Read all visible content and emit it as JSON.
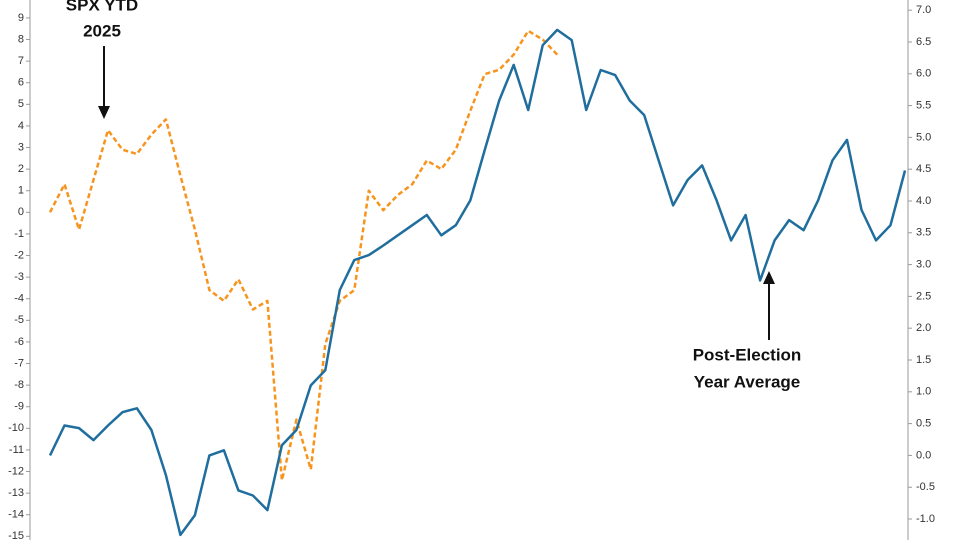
{
  "chart_data": {
    "type": "line",
    "annotations": [
      "SPX YTD",
      "2025",
      "Post-Election",
      "Year Average"
    ],
    "series": [
      {
        "name": "SPX YTD 2025",
        "color": "#f7941d",
        "dashed": true,
        "values": [
          0,
          1.3,
          -0.8,
          1.5,
          3.8,
          2.9,
          2.7,
          3.6,
          4.3,
          1.7,
          -0.8,
          -3.6,
          -4.1,
          -3.1,
          -4.5,
          -4.1,
          -12.4,
          -9.6,
          -11.9,
          -6.1,
          -4.1,
          -3.6,
          1.0,
          0.1,
          0.8,
          1.3,
          2.4,
          2.0,
          2.9,
          4.7,
          6.4,
          6.6,
          7.3,
          8.4,
          8.0,
          7.3,
          null,
          null,
          null,
          null,
          null,
          null,
          null,
          null,
          null,
          null,
          null,
          null,
          null,
          null,
          null,
          null,
          null,
          null,
          null,
          null,
          null,
          null,
          null,
          null
        ]
      },
      {
        "name": "Post-Election Year Average",
        "color": "#1f6e9e",
        "axis": "y2",
        "values": [
          0.0,
          0.47,
          0.43,
          0.24,
          0.47,
          0.68,
          0.74,
          0.4,
          -0.31,
          -1.25,
          -0.94,
          0.0,
          0.08,
          -0.55,
          -0.63,
          -0.86,
          0.16,
          0.4,
          1.1,
          1.34,
          2.6,
          3.07,
          3.15,
          3.3,
          3.46,
          3.62,
          3.78,
          3.46,
          3.62,
          4.01,
          4.8,
          5.58,
          6.14,
          5.43,
          6.45,
          6.69,
          6.53,
          5.43,
          6.06,
          5.98,
          5.58,
          5.35,
          4.64,
          3.93,
          4.33,
          4.56,
          4.01,
          3.38,
          3.78,
          2.75,
          3.38,
          3.7,
          3.54,
          4.01,
          4.64,
          4.96,
          3.86,
          3.38,
          3.62,
          4.48
        ]
      }
    ],
    "ylim": [
      -15.17,
      9.83
    ],
    "yticks": [
      -15,
      -14,
      -13,
      -12,
      -11,
      -10,
      -9,
      -8,
      -7,
      -6,
      -5,
      -4,
      -3,
      -2,
      -1,
      0,
      1,
      2,
      3,
      4,
      5,
      6,
      7,
      8,
      9
    ],
    "y2lim": [
      -1.33,
      7.16
    ],
    "y2ticks": [
      {
        "value": -1,
        "label": "-1.0"
      },
      -0.5,
      {
        "value": 0,
        "label": "0.0"
      },
      0.5,
      {
        "value": 1,
        "label": "1.0"
      },
      1.5,
      {
        "value": 2,
        "label": "2.0"
      },
      2.5,
      {
        "value": 3,
        "label": "3.0"
      },
      3.5,
      {
        "value": 4,
        "label": "4.0"
      },
      4.5,
      {
        "value": 5,
        "label": "5.0"
      },
      5.5,
      {
        "value": 6,
        "label": "6.0"
      },
      6.5,
      {
        "value": 7,
        "label": "7.0"
      }
    ]
  }
}
